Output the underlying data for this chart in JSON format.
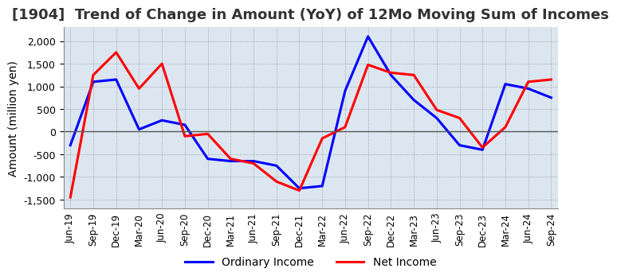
{
  "title": "[1904]  Trend of Change in Amount (YoY) of 12Mo Moving Sum of Incomes",
  "ylabel": "Amount (million yen)",
  "ylim": [
    -1700,
    2300
  ],
  "yticks": [
    -1500,
    -1000,
    -500,
    0,
    500,
    1000,
    1500,
    2000
  ],
  "line1_color": "#0000FF",
  "line2_color": "#FF0000",
  "line1_label": "Ordinary Income",
  "line2_label": "Net Income",
  "title_fontsize": 13,
  "axis_fontsize": 10,
  "x_labels": [
    "Jun-19",
    "Sep-19",
    "Dec-19",
    "Mar-20",
    "Jun-20",
    "Sep-20",
    "Dec-20",
    "Mar-21",
    "Jun-21",
    "Sep-21",
    "Dec-21",
    "Mar-22",
    "Jun-22",
    "Sep-22",
    "Dec-22",
    "Mar-23",
    "Jun-23",
    "Sep-23",
    "Dec-23",
    "Mar-24",
    "Jun-24",
    "Sep-24"
  ],
  "ordinary_income": [
    -300,
    1100,
    1150,
    50,
    250,
    150,
    -600,
    -650,
    -650,
    -750,
    -1250,
    -1200,
    900,
    2100,
    1250,
    700,
    300,
    -300,
    -400,
    1050,
    950,
    750
  ],
  "net_income": [
    -1450,
    1250,
    1750,
    950,
    1500,
    -100,
    -50,
    -600,
    -700,
    -1100,
    -1300,
    -150,
    100,
    1475,
    1300,
    1250,
    480,
    300,
    -350,
    100,
    1100,
    1150
  ],
  "background_color": "#dce6f0",
  "plot_bg_color": "#dce6f0",
  "grid_color": "#888888",
  "title_color": "#333333",
  "zero_line_color": "#555555"
}
